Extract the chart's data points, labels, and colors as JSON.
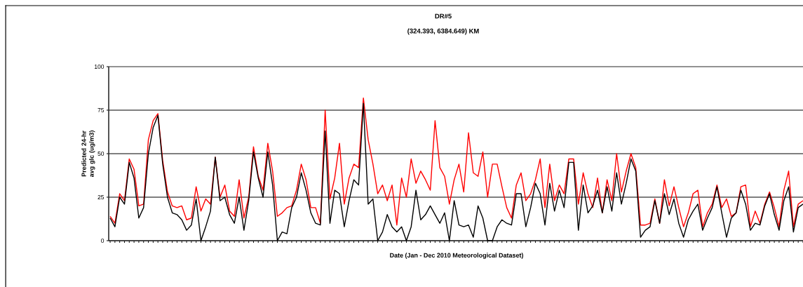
{
  "chart_data": {
    "type": "line",
    "title": "DR#5",
    "subtitle": "(324.393, 6384.649) KM",
    "xlabel": "Date (Jan - Dec 2010 Meteorological Dataset)",
    "ylabel": "Predicted 24-hr avg glc (ug/m3)",
    "categories": [
      null,
      null,
      null,
      null,
      null,
      null,
      null,
      null,
      null,
      null,
      null,
      null,
      null,
      null,
      null,
      null,
      null,
      null,
      null,
      null,
      null,
      null,
      null,
      null,
      null,
      null,
      null,
      null,
      null,
      null,
      null,
      null,
      null,
      null,
      null,
      null,
      null,
      null,
      null,
      null,
      null,
      null,
      null,
      null,
      null,
      null,
      null,
      null,
      null,
      null,
      null,
      null,
      null,
      null,
      null,
      null,
      null,
      null,
      null,
      null,
      null,
      null,
      null,
      null,
      null,
      null,
      null,
      null,
      null,
      null,
      null,
      null,
      null,
      null,
      null,
      null,
      null,
      null,
      null,
      null,
      null,
      null,
      null,
      null,
      null,
      null,
      null,
      null,
      null,
      null,
      null,
      null,
      null,
      null,
      null,
      null,
      null,
      null,
      null,
      null,
      null,
      null,
      null,
      null,
      null,
      null,
      null,
      null,
      null,
      null,
      null,
      null,
      null,
      null,
      null,
      null,
      null,
      null,
      null,
      null,
      null,
      null,
      null,
      null,
      null,
      null,
      null,
      null,
      null,
      null,
      null,
      null,
      null,
      null,
      null,
      null,
      null,
      null,
      null,
      null,
      null,
      null,
      null,
      null,
      null,
      null
    ],
    "series": [
      {
        "color": "#ff0000",
        "values": [
          14,
          10,
          27,
          23,
          47,
          41,
          20,
          21,
          58,
          69,
          73,
          46,
          28,
          20,
          19,
          20,
          12,
          13,
          31,
          17,
          24,
          21,
          48,
          25,
          32,
          17,
          14,
          35,
          13,
          25,
          54,
          37,
          29,
          56,
          40,
          14,
          16,
          19,
          20,
          29,
          44,
          35,
          19,
          19,
          10,
          75,
          24,
          36,
          56,
          21,
          36,
          44,
          42,
          82,
          58,
          44,
          27,
          32,
          23,
          32,
          9,
          36,
          25,
          47,
          33,
          40,
          35,
          29,
          69,
          42,
          37,
          21,
          35,
          44,
          28,
          62,
          39,
          37,
          51,
          25,
          44,
          44,
          31,
          19,
          13,
          32,
          39,
          23,
          27,
          35,
          47,
          19,
          44,
          23,
          32,
          27,
          47,
          47,
          21,
          39,
          27,
          19,
          36,
          16,
          35,
          23,
          50,
          28,
          40,
          50,
          42,
          9,
          9,
          10,
          24,
          10,
          35,
          20,
          31,
          19,
          8,
          16,
          27,
          29,
          8,
          16,
          21,
          32,
          19,
          24,
          14,
          16,
          31,
          32,
          8,
          17,
          10,
          21,
          28,
          19,
          8,
          29,
          40,
          8,
          21,
          23
        ]
      },
      {
        "color": "#000000",
        "values": [
          13,
          8,
          25,
          21,
          45,
          36,
          13,
          19,
          50,
          65,
          72,
          44,
          25,
          16,
          15,
          12,
          6,
          9,
          24,
          0,
          8,
          17,
          48,
          23,
          25,
          15,
          10,
          25,
          6,
          23,
          51,
          36,
          25,
          51,
          32,
          0,
          5,
          4,
          19,
          25,
          39,
          29,
          16,
          10,
          9,
          63,
          10,
          29,
          27,
          8,
          23,
          35,
          32,
          79,
          21,
          24,
          0,
          5,
          15,
          8,
          5,
          8,
          0,
          8,
          29,
          12,
          15,
          20,
          15,
          10,
          16,
          0,
          23,
          9,
          8,
          9,
          2,
          20,
          13,
          0,
          0,
          8,
          12,
          10,
          9,
          27,
          27,
          8,
          19,
          33,
          27,
          9,
          33,
          17,
          29,
          19,
          45,
          45,
          6,
          32,
          16,
          20,
          29,
          16,
          31,
          17,
          39,
          21,
          33,
          47,
          40,
          2,
          6,
          8,
          23,
          10,
          27,
          15,
          24,
          10,
          2,
          12,
          17,
          21,
          6,
          13,
          19,
          31,
          16,
          2,
          13,
          16,
          29,
          21,
          6,
          10,
          9,
          20,
          27,
          15,
          6,
          23,
          31,
          5,
          19,
          21
        ]
      }
    ],
    "ylim": [
      0,
      100
    ],
    "yticks": [
      0,
      25,
      50,
      75,
      100
    ],
    "grid": "y",
    "tick_labels": "y",
    "marker": "none",
    "line_style": "solid"
  }
}
